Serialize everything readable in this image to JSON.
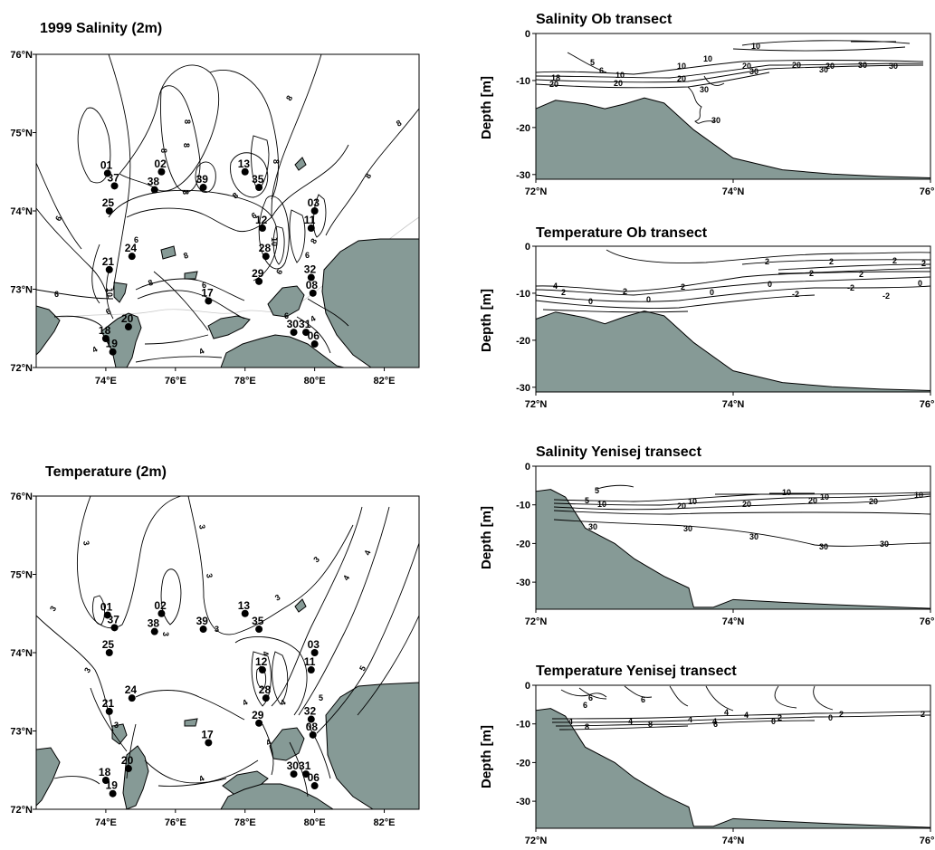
{
  "colors": {
    "land": "#869a96",
    "line": "#000000",
    "background": "#ffffff"
  },
  "chart_data": [
    {
      "type": "map",
      "title": "1999 Salinity (2m)",
      "x_ticks": [
        "74°E",
        "76°E",
        "78°E",
        "80°E",
        "82°E"
      ],
      "y_ticks": [
        "76°N",
        "75°N",
        "74°N",
        "73°N",
        "72°N"
      ],
      "xlim": [
        72.0,
        83.0
      ],
      "ylim": [
        72.0,
        76.0
      ],
      "stations": [
        {
          "id": "01",
          "lon": 74.05,
          "lat": 74.48
        },
        {
          "id": "37",
          "lon": 74.25,
          "lat": 74.32
        },
        {
          "id": "25",
          "lon": 74.1,
          "lat": 74.0
        },
        {
          "id": "02",
          "lon": 75.6,
          "lat": 74.5
        },
        {
          "id": "38",
          "lon": 75.4,
          "lat": 74.27
        },
        {
          "id": "39",
          "lon": 76.8,
          "lat": 74.3
        },
        {
          "id": "13",
          "lon": 78.0,
          "lat": 74.5
        },
        {
          "id": "35",
          "lon": 78.4,
          "lat": 74.3
        },
        {
          "id": "03",
          "lon": 80.0,
          "lat": 74.0
        },
        {
          "id": "11",
          "lon": 79.9,
          "lat": 73.78
        },
        {
          "id": "12",
          "lon": 78.5,
          "lat": 73.78
        },
        {
          "id": "28",
          "lon": 78.6,
          "lat": 73.42
        },
        {
          "id": "24",
          "lon": 74.75,
          "lat": 73.42
        },
        {
          "id": "21",
          "lon": 74.1,
          "lat": 73.25
        },
        {
          "id": "29",
          "lon": 78.4,
          "lat": 73.1
        },
        {
          "id": "32",
          "lon": 79.9,
          "lat": 73.15
        },
        {
          "id": "08",
          "lon": 79.95,
          "lat": 72.95
        },
        {
          "id": "17",
          "lon": 76.95,
          "lat": 72.85
        },
        {
          "id": "20",
          "lon": 74.65,
          "lat": 72.52
        },
        {
          "id": "30",
          "lon": 79.4,
          "lat": 72.45
        },
        {
          "id": "31",
          "lon": 79.75,
          "lat": 72.45
        },
        {
          "id": "06",
          "lon": 80.0,
          "lat": 72.3
        },
        {
          "id": "18",
          "lon": 74.0,
          "lat": 72.37
        },
        {
          "id": "19",
          "lon": 74.2,
          "lat": 72.2
        }
      ],
      "contour_labels": [
        "8",
        "8",
        "8",
        "8",
        "8",
        "8",
        "8",
        "8",
        "8",
        "6",
        "6",
        "6",
        "6",
        "8",
        "8",
        "10",
        "10",
        "6",
        "8",
        "6",
        "4",
        "6",
        "4",
        "4",
        "6",
        "6"
      ]
    },
    {
      "type": "map",
      "title": "Temperature (2m)",
      "x_ticks": [
        "74°E",
        "76°E",
        "78°E",
        "80°E",
        "82°E"
      ],
      "y_ticks": [
        "76°N",
        "75°N",
        "74°N",
        "73°N",
        "72°N"
      ],
      "xlim": [
        72.0,
        83.0
      ],
      "ylim": [
        72.0,
        76.0
      ],
      "stations": [
        {
          "id": "01",
          "lon": 74.05,
          "lat": 74.48
        },
        {
          "id": "37",
          "lon": 74.25,
          "lat": 74.32
        },
        {
          "id": "25",
          "lon": 74.1,
          "lat": 74.0
        },
        {
          "id": "02",
          "lon": 75.6,
          "lat": 74.5
        },
        {
          "id": "38",
          "lon": 75.4,
          "lat": 74.27
        },
        {
          "id": "39",
          "lon": 76.8,
          "lat": 74.3
        },
        {
          "id": "13",
          "lon": 78.0,
          "lat": 74.5
        },
        {
          "id": "35",
          "lon": 78.4,
          "lat": 74.3
        },
        {
          "id": "03",
          "lon": 80.0,
          "lat": 74.0
        },
        {
          "id": "11",
          "lon": 79.9,
          "lat": 73.78
        },
        {
          "id": "12",
          "lon": 78.5,
          "lat": 73.78
        },
        {
          "id": "28",
          "lon": 78.6,
          "lat": 73.42
        },
        {
          "id": "24",
          "lon": 74.75,
          "lat": 73.42
        },
        {
          "id": "21",
          "lon": 74.1,
          "lat": 73.25
        },
        {
          "id": "29",
          "lon": 78.4,
          "lat": 73.1
        },
        {
          "id": "32",
          "lon": 79.9,
          "lat": 73.15
        },
        {
          "id": "08",
          "lon": 79.95,
          "lat": 72.95
        },
        {
          "id": "17",
          "lon": 76.95,
          "lat": 72.85
        },
        {
          "id": "20",
          "lon": 74.65,
          "lat": 72.52
        },
        {
          "id": "30",
          "lon": 79.4,
          "lat": 72.45
        },
        {
          "id": "31",
          "lon": 79.75,
          "lat": 72.45
        },
        {
          "id": "06",
          "lon": 80.0,
          "lat": 72.3
        },
        {
          "id": "18",
          "lon": 74.0,
          "lat": 72.37
        },
        {
          "id": "19",
          "lon": 74.2,
          "lat": 72.2
        }
      ],
      "contour_labels": [
        "3",
        "3",
        "3",
        "3",
        "3",
        "3",
        "3",
        "3",
        "3",
        "4",
        "4",
        "4",
        "5",
        "4",
        "5",
        "4",
        "4",
        "3",
        "4"
      ]
    },
    {
      "type": "section",
      "title": "Salinity Ob transect",
      "ylabel": "Depth [m]",
      "x_ticks": [
        "72°N",
        "74°N",
        "76°N"
      ],
      "y_ticks": [
        "0",
        "-10",
        "-20",
        "-30"
      ],
      "xlim": [
        72.0,
        76.0
      ],
      "ylim": [
        -31.0,
        0.0
      ],
      "bottom": [
        [
          72.0,
          -16.0
        ],
        [
          72.2,
          -14.2
        ],
        [
          72.5,
          -15.0
        ],
        [
          72.7,
          -16.0
        ],
        [
          72.9,
          -15.0
        ],
        [
          73.1,
          -13.7
        ],
        [
          73.3,
          -14.8
        ],
        [
          73.6,
          -20.5
        ],
        [
          74.0,
          -26.5
        ],
        [
          74.5,
          -29.0
        ],
        [
          75.0,
          -29.9
        ],
        [
          75.5,
          -30.4
        ],
        [
          76.0,
          -30.7
        ]
      ],
      "contour_labels": [
        "10",
        "5",
        "6",
        "10",
        "10",
        "10",
        "20",
        "20",
        "20",
        "20",
        "30",
        "20",
        "30",
        "30",
        "30",
        "30",
        "30",
        "18",
        "20"
      ]
    },
    {
      "type": "section",
      "title": "Temperature Ob transect",
      "ylabel": "Depth [m]",
      "x_ticks": [
        "72°N",
        "74°N",
        "76°N"
      ],
      "y_ticks": [
        "0",
        "-10",
        "-20",
        "-30"
      ],
      "xlim": [
        72.0,
        76.0
      ],
      "ylim": [
        -31.0,
        0.0
      ],
      "bottom": [
        [
          72.0,
          -15.5
        ],
        [
          72.2,
          -14.0
        ],
        [
          72.5,
          -15.2
        ],
        [
          72.7,
          -16.5
        ],
        [
          72.9,
          -15.0
        ],
        [
          73.1,
          -13.8
        ],
        [
          73.3,
          -14.8
        ],
        [
          73.6,
          -20.5
        ],
        [
          74.0,
          -26.5
        ],
        [
          74.5,
          -29.0
        ],
        [
          75.0,
          -29.9
        ],
        [
          75.5,
          -30.4
        ],
        [
          76.0,
          -30.7
        ]
      ],
      "contour_labels": [
        "2",
        "2",
        "2",
        "2",
        "2",
        "4",
        "2",
        "2",
        "2",
        "0",
        "0",
        "0",
        "0",
        "-2",
        "-2",
        "-2",
        "0",
        "2"
      ]
    },
    {
      "type": "section",
      "title": "Salinity Yenisej transect",
      "ylabel": "Depth [m]",
      "x_ticks": [
        "72°N",
        "74°N",
        "76°N"
      ],
      "y_ticks": [
        "0",
        "-10",
        "-20",
        "-30"
      ],
      "xlim": [
        72.0,
        76.0
      ],
      "ylim": [
        -37.0,
        0.0
      ],
      "bottom": [
        [
          72.0,
          -6.5
        ],
        [
          72.15,
          -6.0
        ],
        [
          72.3,
          -8.0
        ],
        [
          72.5,
          -16.0
        ],
        [
          72.8,
          -20.0
        ],
        [
          73.0,
          -24.0
        ],
        [
          73.3,
          -28.5
        ],
        [
          73.55,
          -31.5
        ],
        [
          73.6,
          -36.5
        ],
        [
          73.8,
          -36.5
        ],
        [
          74.0,
          -34.5
        ],
        [
          74.5,
          -35.2
        ],
        [
          75.0,
          -35.8
        ],
        [
          75.5,
          -36.3
        ],
        [
          76.0,
          -36.8
        ]
      ],
      "contour_labels": [
        "5",
        "5",
        "10",
        "20",
        "10",
        "10",
        "20",
        "20",
        "10",
        "20",
        "10",
        "30",
        "30",
        "30",
        "30",
        "30"
      ]
    },
    {
      "type": "section",
      "title": "Temperature Yenisej transect",
      "ylabel": "Depth [m]",
      "x_ticks": [
        "72°N",
        "74°N",
        "76°N"
      ],
      "y_ticks": [
        "0",
        "-10",
        "-20",
        "-30"
      ],
      "xlim": [
        72.0,
        76.0
      ],
      "ylim": [
        -37.0,
        0.0
      ],
      "bottom": [
        [
          72.0,
          -6.5
        ],
        [
          72.15,
          -6.0
        ],
        [
          72.3,
          -8.0
        ],
        [
          72.5,
          -16.0
        ],
        [
          72.8,
          -20.0
        ],
        [
          73.0,
          -24.0
        ],
        [
          73.3,
          -28.5
        ],
        [
          73.55,
          -31.5
        ],
        [
          73.6,
          -36.5
        ],
        [
          73.8,
          -36.5
        ],
        [
          74.0,
          -34.5
        ],
        [
          74.5,
          -35.2
        ],
        [
          75.0,
          -35.8
        ],
        [
          75.5,
          -36.3
        ],
        [
          76.0,
          -36.8
        ]
      ],
      "contour_labels": [
        "6",
        "6",
        "6",
        "4",
        "4",
        "8",
        "4",
        "4",
        "4",
        "8",
        "4",
        "6",
        "2",
        "0",
        "2",
        "0",
        "2"
      ]
    }
  ]
}
